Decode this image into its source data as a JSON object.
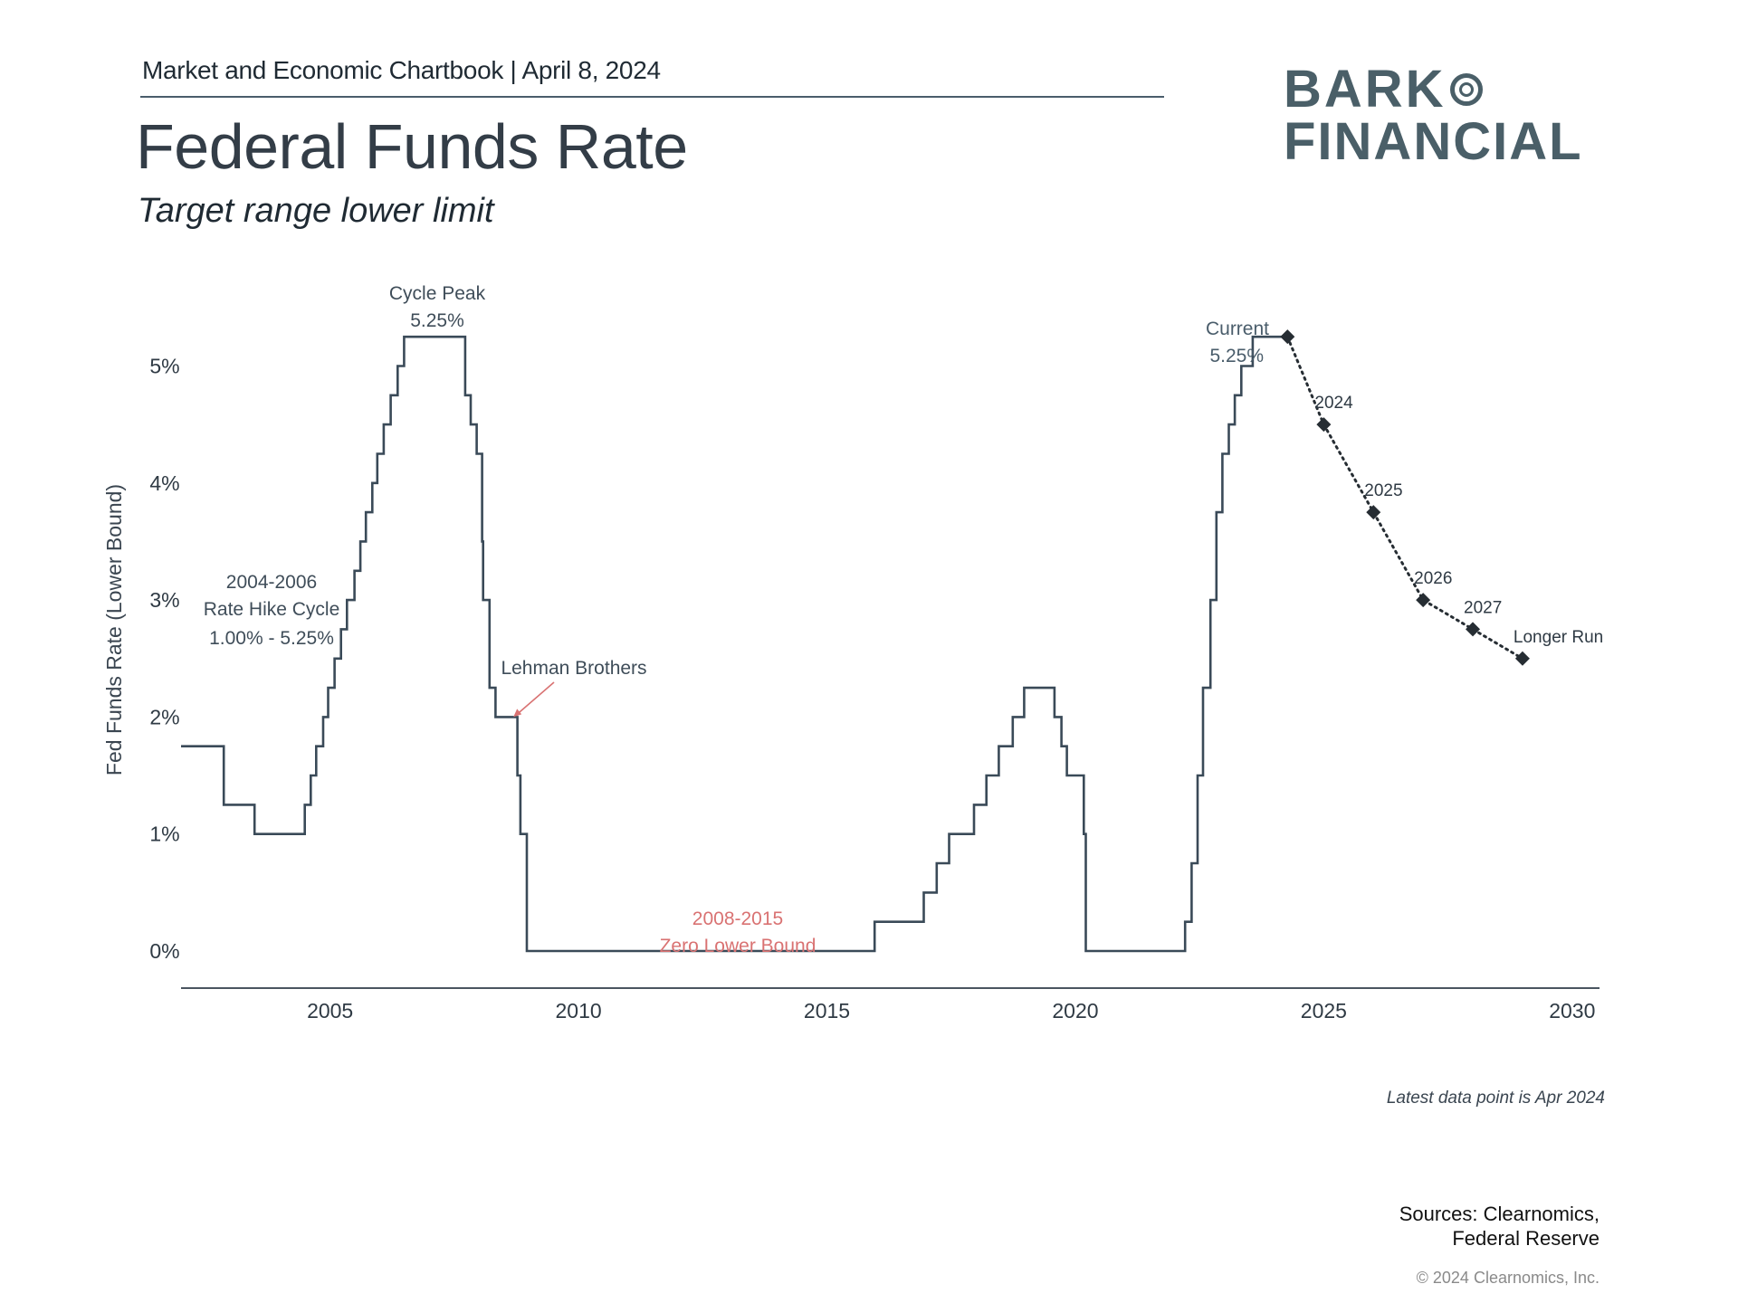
{
  "header": {
    "text": "Market and Economic Chartbook | April 8, 2024",
    "title": "Federal Funds Rate",
    "subtitle": "Target range lower limit"
  },
  "logo": {
    "line1": "BARK",
    "line2": "FINANCIAL",
    "ring_icon": "double-circle-o"
  },
  "footer": {
    "sources_line1": "Sources: Clearnomics,",
    "sources_line2": "Federal Reserve",
    "copyright": "© 2024 Clearnomics, Inc."
  },
  "colors": {
    "line": "#3a4a58",
    "annotation": "#3f4d59",
    "highlight": "#d97272",
    "axis": "#4a5560",
    "projection": "#262d33"
  },
  "chart_data": {
    "type": "line",
    "title": "Federal Funds Rate",
    "subtitle": "Target range lower limit",
    "xlabel": "",
    "ylabel": "Fed Funds Rate (Lower Bound)",
    "xlim": [
      2002.0,
      2030.55
    ],
    "ylim": [
      0,
      5.5
    ],
    "x_ticks": [
      2005,
      2010,
      2015,
      2020,
      2025,
      2030
    ],
    "x_tick_labels": [
      "2005",
      "2010",
      "2015",
      "2020",
      "2025",
      "2030"
    ],
    "y_ticks": [
      0,
      1,
      2,
      3,
      4,
      5
    ],
    "y_tick_labels": [
      "0%",
      "1%",
      "2%",
      "3%",
      "4%",
      "5%"
    ],
    "grid": false,
    "series": [
      {
        "name": "Fed Funds Rate (Lower Bound)",
        "style": "step",
        "points": [
          [
            2002.0,
            1.75
          ],
          [
            2002.86,
            1.25
          ],
          [
            2003.48,
            1.0
          ],
          [
            2004.49,
            1.25
          ],
          [
            2004.61,
            1.5
          ],
          [
            2004.72,
            1.75
          ],
          [
            2004.86,
            2.0
          ],
          [
            2004.96,
            2.25
          ],
          [
            2005.09,
            2.5
          ],
          [
            2005.22,
            2.75
          ],
          [
            2005.34,
            3.0
          ],
          [
            2005.49,
            3.25
          ],
          [
            2005.61,
            3.5
          ],
          [
            2005.72,
            3.75
          ],
          [
            2005.85,
            4.0
          ],
          [
            2005.95,
            4.25
          ],
          [
            2006.08,
            4.5
          ],
          [
            2006.22,
            4.75
          ],
          [
            2006.36,
            5.0
          ],
          [
            2006.49,
            5.25
          ],
          [
            2007.72,
            4.75
          ],
          [
            2007.83,
            4.5
          ],
          [
            2007.95,
            4.25
          ],
          [
            2008.06,
            3.5
          ],
          [
            2008.08,
            3.0
          ],
          [
            2008.21,
            2.25
          ],
          [
            2008.33,
            2.0
          ],
          [
            2008.69,
            2.0
          ],
          [
            2008.77,
            1.5
          ],
          [
            2008.83,
            1.0
          ],
          [
            2008.96,
            0.0
          ],
          [
            2015.96,
            0.25
          ],
          [
            2016.95,
            0.5
          ],
          [
            2017.21,
            0.75
          ],
          [
            2017.46,
            1.0
          ],
          [
            2017.96,
            1.25
          ],
          [
            2018.21,
            1.5
          ],
          [
            2018.46,
            1.75
          ],
          [
            2018.74,
            2.0
          ],
          [
            2018.97,
            2.25
          ],
          [
            2019.58,
            2.0
          ],
          [
            2019.72,
            1.75
          ],
          [
            2019.83,
            1.5
          ],
          [
            2020.17,
            1.0
          ],
          [
            2020.21,
            0.0
          ],
          [
            2022.21,
            0.25
          ],
          [
            2022.34,
            0.75
          ],
          [
            2022.46,
            1.5
          ],
          [
            2022.57,
            2.25
          ],
          [
            2022.72,
            3.0
          ],
          [
            2022.84,
            3.75
          ],
          [
            2022.96,
            4.25
          ],
          [
            2023.09,
            4.5
          ],
          [
            2023.21,
            4.75
          ],
          [
            2023.34,
            5.0
          ],
          [
            2023.57,
            5.25
          ],
          [
            2024.27,
            5.25
          ]
        ]
      },
      {
        "name": "Projections",
        "style": "dotted-with-diamonds",
        "points": [
          {
            "x": 2024.27,
            "y": 5.25,
            "label": ""
          },
          {
            "x": 2025.0,
            "y": 4.5,
            "label": "2024"
          },
          {
            "x": 2026.0,
            "y": 3.75,
            "label": "2025"
          },
          {
            "x": 2027.0,
            "y": 3.0,
            "label": "2026"
          },
          {
            "x": 2028.0,
            "y": 2.75,
            "label": "2027"
          },
          {
            "x": 2029.0,
            "y": 2.5,
            "label": "Longer Run"
          }
        ]
      }
    ],
    "annotations": {
      "cycle_peak": {
        "line1": "Cycle Peak",
        "line2": "5.25%",
        "x": 2007.1,
        "y": 5.25
      },
      "hike_cycle": {
        "line1": "2004-2006",
        "line2": "Rate Hike Cycle",
        "line3": "1.00% - 5.25%"
      },
      "lehman": {
        "text": "Lehman Brothers",
        "arrow_to": [
          2008.69,
          2.0
        ]
      },
      "zlb": {
        "line1": "2008-2015",
        "line2": "Zero Lower Bound"
      },
      "current": {
        "line1": "Current",
        "line2": "5.25%"
      }
    },
    "note": "Latest data point is Apr 2024"
  }
}
